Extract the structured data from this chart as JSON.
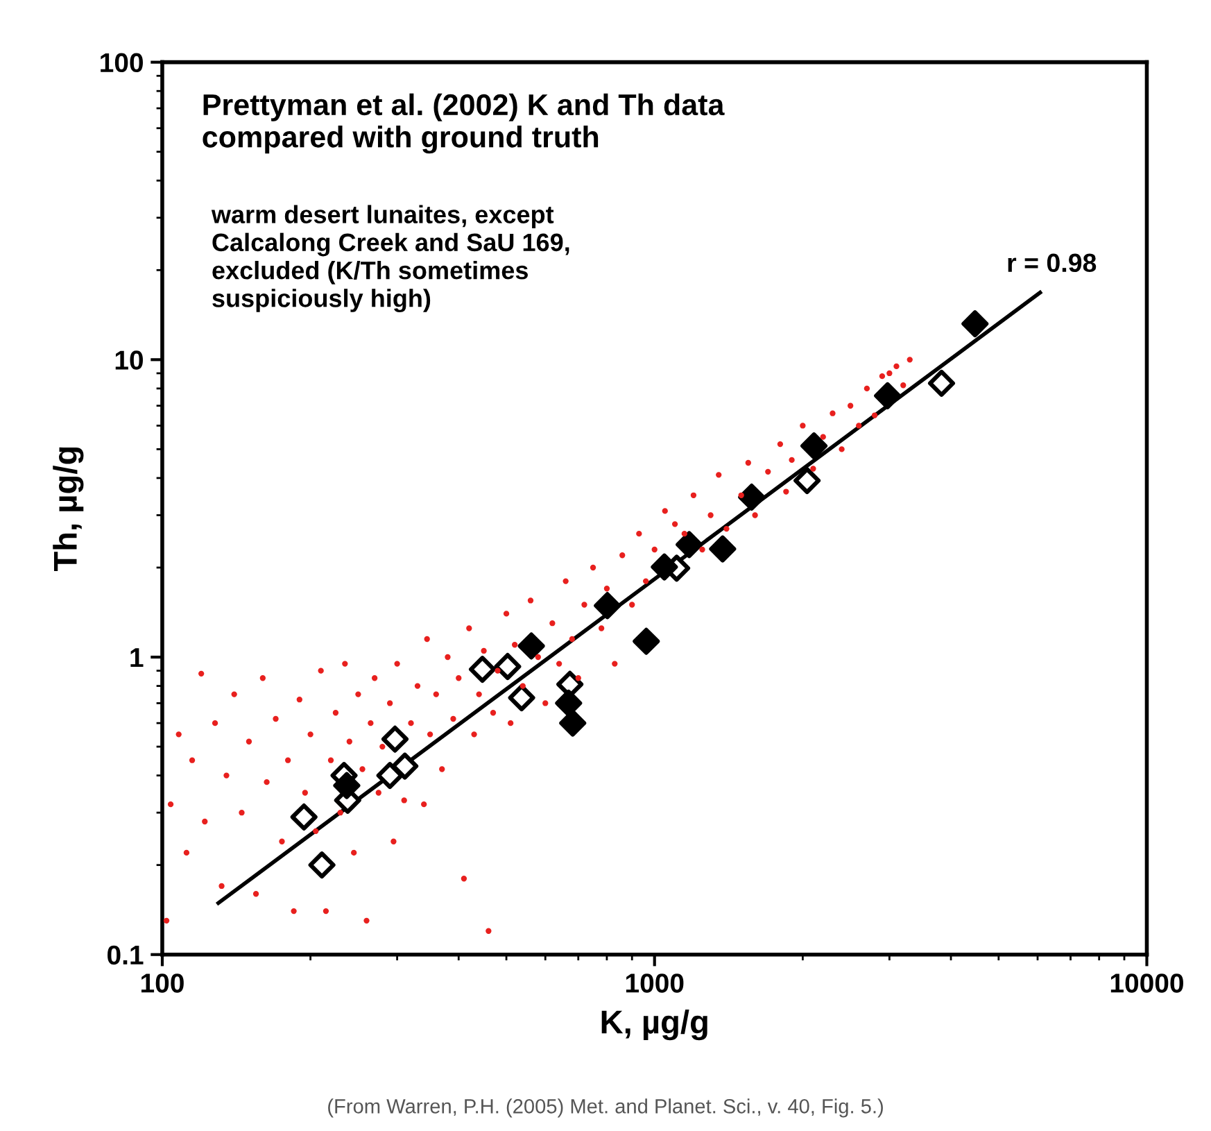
{
  "chart_data": {
    "type": "scatter",
    "title": "Prettyman et al. (2002) K and Th data\ncompared with ground truth",
    "subtitle": "warm desert lunaites, except\nCalcalong Creek and SaU 169,\nexcluded (K/Th sometimes\nsuspiciously high)",
    "xlabel": "K, µg/g",
    "ylabel": "Th, µg/g",
    "log": "xy",
    "xlim": [
      100,
      10000
    ],
    "ylim": [
      0.1,
      100
    ],
    "xticks": [
      100,
      1000,
      10000
    ],
    "yticks": [
      0.1,
      1,
      10,
      100
    ],
    "grid": false,
    "legend": false,
    "annotations": [
      {
        "text": "r = 0.98",
        "x": 6070,
        "y": 16.8
      },
      "(From Warren, P.H. (2005) Met. and Planet. Sci., v. 40, Fig. 5.)"
    ],
    "series": [
      {
        "marker": "circle",
        "color": "#e8201e",
        "x": [
          102,
          104,
          108,
          112,
          115,
          120,
          122,
          128,
          132,
          135,
          140,
          145,
          150,
          155,
          160,
          163,
          170,
          175,
          180,
          185,
          190,
          195,
          200,
          205,
          210,
          215,
          220,
          225,
          230,
          235,
          240,
          245,
          250,
          255,
          260,
          265,
          270,
          275,
          280,
          290,
          295,
          300,
          310,
          320,
          330,
          340,
          345,
          350,
          360,
          370,
          380,
          390,
          400,
          410,
          420,
          430,
          440,
          450,
          460,
          470,
          480,
          500,
          510,
          520,
          540,
          560,
          580,
          600,
          620,
          640,
          660,
          680,
          700,
          720,
          750,
          780,
          800,
          830,
          860,
          900,
          930,
          960,
          1000,
          1050,
          1100,
          1150,
          1200,
          1250,
          1300,
          1350,
          1400,
          1500,
          1550,
          1600,
          1700,
          1800,
          1850,
          1900,
          2000,
          2100,
          2200,
          2300,
          2400,
          2500,
          2600,
          2700,
          2800,
          2900,
          3000,
          3100,
          3200,
          3300
        ],
        "values": [
          0.13,
          0.32,
          0.55,
          0.22,
          0.45,
          0.88,
          0.28,
          0.6,
          0.17,
          0.4,
          0.75,
          0.3,
          0.52,
          0.16,
          0.85,
          0.38,
          0.62,
          0.24,
          0.45,
          0.14,
          0.72,
          0.35,
          0.55,
          0.26,
          0.9,
          0.14,
          0.45,
          0.65,
          0.3,
          0.95,
          0.52,
          0.22,
          0.75,
          0.42,
          0.13,
          0.6,
          0.85,
          0.35,
          0.5,
          0.7,
          0.24,
          0.95,
          0.33,
          0.6,
          0.8,
          0.32,
          1.15,
          0.55,
          0.75,
          0.42,
          1.0,
          0.62,
          0.85,
          0.18,
          1.25,
          0.55,
          0.75,
          1.05,
          0.12,
          0.65,
          0.9,
          1.4,
          0.6,
          1.1,
          0.8,
          1.55,
          1.0,
          0.7,
          1.3,
          0.95,
          1.8,
          1.15,
          0.85,
          1.5,
          2.0,
          1.25,
          1.7,
          0.95,
          2.2,
          1.5,
          2.6,
          1.8,
          2.3,
          3.1,
          2.8,
          2.6,
          3.5,
          2.3,
          3.0,
          4.1,
          2.7,
          3.5,
          4.5,
          3.0,
          4.2,
          5.2,
          3.6,
          4.6,
          6.0,
          4.3,
          5.5,
          6.6,
          5.0,
          7.0,
          6.0,
          8.0,
          6.5,
          8.8,
          9.0,
          9.5,
          8.2,
          10.0
        ]
      },
      {
        "marker": "diamond",
        "color": "#000000",
        "x": [
          562,
          802,
          962,
          669,
          682,
          237,
          1047,
          4477,
          2974,
          2108,
          1575,
          1176,
          1375
        ],
        "values": [
          1.09,
          1.49,
          1.13,
          0.7,
          0.6,
          0.37,
          2.01,
          13.2,
          7.56,
          5.13,
          3.45,
          2.39,
          2.31
        ]
      },
      {
        "marker": "diamond",
        "color": "#ffffff",
        "x": [
          3828,
          2041,
          1109,
          447,
          503,
          537,
          673,
          297,
          290,
          311,
          234,
          238,
          194,
          211
        ],
        "values": [
          8.33,
          3.92,
          1.99,
          0.91,
          0.93,
          0.73,
          0.81,
          0.53,
          0.4,
          0.43,
          0.4,
          0.33,
          0.29,
          0.2
        ]
      },
      {
        "type": "line",
        "marker": "none",
        "line_style": "solid",
        "color": "#000000",
        "x": [
          130,
          6070
        ],
        "values": [
          0.149,
          16.8
        ]
      }
    ]
  }
}
